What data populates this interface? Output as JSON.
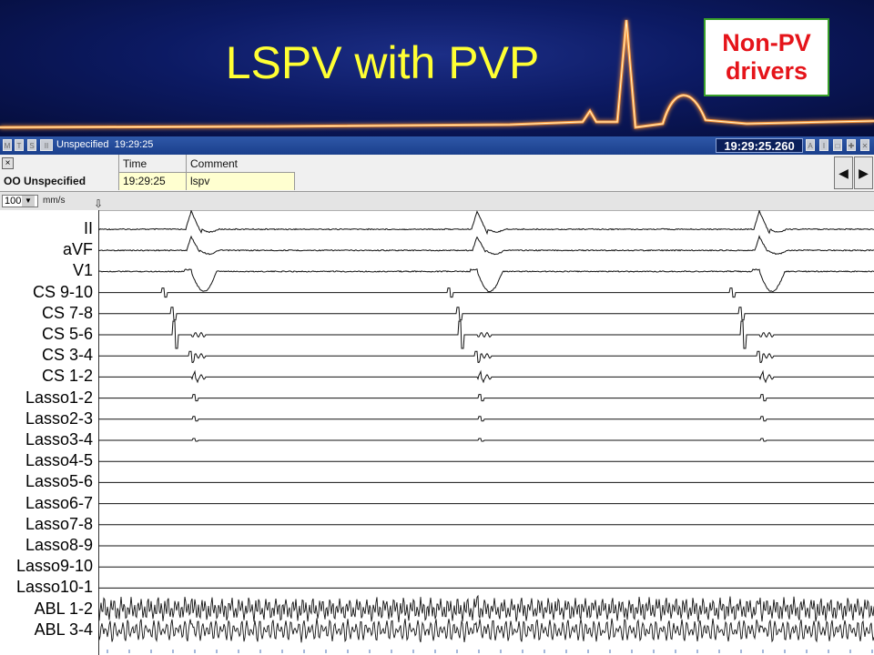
{
  "slide": {
    "title": "LSPV with PVP",
    "corner_box": {
      "line1": "Non-PV",
      "line2": "drivers"
    },
    "colors": {
      "background": "#0c1a63",
      "title": "#ffff33",
      "box_text": "#e5141a",
      "box_border": "#39a02a",
      "ecg_glow": "#ff9a3c"
    }
  },
  "window": {
    "title_buttons": [
      "M",
      "T",
      "S",
      "II"
    ],
    "title": "Unspecified",
    "title_time": "19:29:25",
    "clock": "19:29:25.260",
    "right_buttons": [
      "A",
      "I",
      "□",
      "✚",
      "✕"
    ]
  },
  "infobar": {
    "close": "×",
    "group_label": "OO Unspecified",
    "col_time": "Time",
    "col_comment": "Comment",
    "row_time": "19:29:25",
    "row_comment": "lspv",
    "nav_prev": "◀",
    "nav_next": "▶"
  },
  "speed": {
    "value": "100",
    "dropdown_icon": "chevron-down-icon",
    "unit": "mm/s",
    "marker_icon": "down-arrow-marker-icon"
  },
  "leads": [
    "II",
    "aVF",
    "V1",
    "CS 9-10",
    "CS 7-8",
    "CS 5-6",
    "CS 3-4",
    "CS 1-2",
    "Lasso1-2",
    "Lasso2-3",
    "Lasso3-4",
    "Lasso4-5",
    "Lasso5-6",
    "Lasso6-7",
    "Lasso7-8",
    "Lasso8-9",
    "Lasso9-10",
    "Lasso10-1",
    "ABL 1-2",
    "ABL 3-4"
  ]
}
